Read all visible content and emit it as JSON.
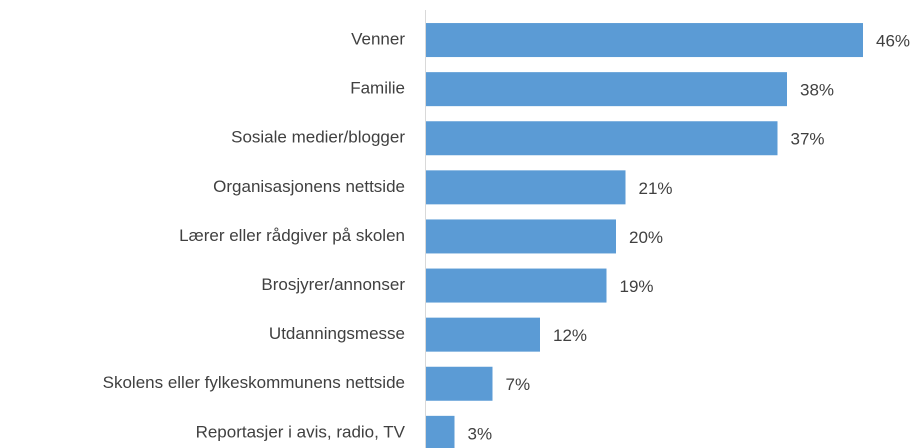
{
  "chart_data": {
    "type": "bar",
    "orientation": "horizontal",
    "categories": [
      "Venner",
      "Familie",
      "Sosiale medier/blogger",
      "Organisasjonens nettside",
      "Lærer eller rådgiver på skolen",
      "Brosjyrer/annonser",
      "Utdanningsmesse",
      "Skolens eller fylkeskommunens nettside",
      "Reportasjer i avis, radio, TV"
    ],
    "values": [
      46,
      38,
      37,
      21,
      20,
      19,
      12,
      7,
      3
    ],
    "value_labels": [
      "46%",
      "38%",
      "37%",
      "21%",
      "20%",
      "19%",
      "12%",
      "7%",
      "3%"
    ],
    "color": "#5b9bd5"
  }
}
